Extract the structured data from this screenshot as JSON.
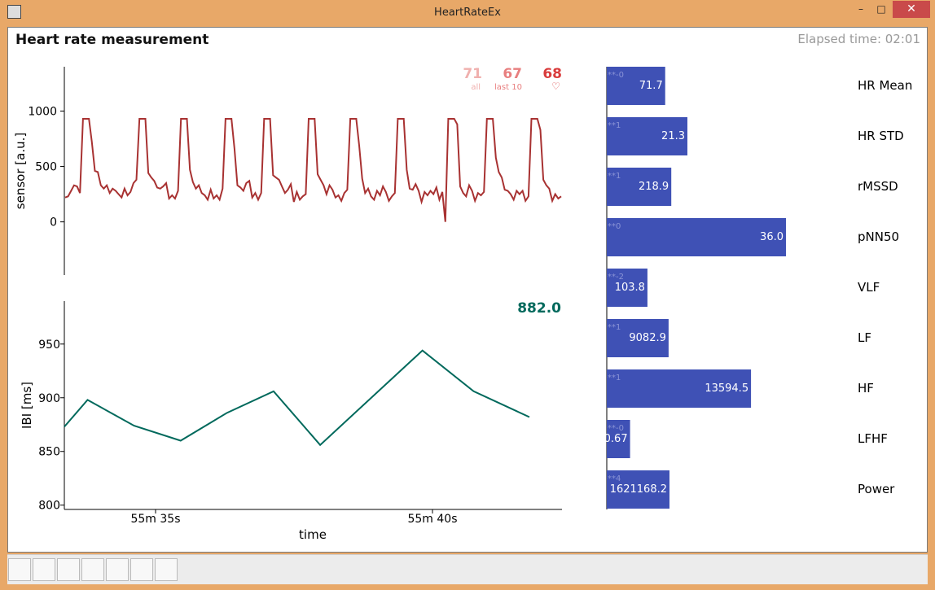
{
  "window": {
    "title": "HeartRateEx",
    "min": "–",
    "max": "□",
    "close": "✕"
  },
  "figure": {
    "title": "Heart rate measurement",
    "elapsed": "Elapsed time: 02:01"
  },
  "hr_readouts": [
    {
      "value": "71",
      "label": "all",
      "color": "#f0b0ae"
    },
    {
      "value": "67",
      "label": "last 10",
      "color": "#e87f7f"
    },
    {
      "value": "68",
      "label": "♡",
      "color": "#d93c3c"
    }
  ],
  "ibi_readout": {
    "value": "882.0",
    "color": "#00695c"
  },
  "chart_data": [
    {
      "type": "line",
      "ylabel": "sensor [a.u.]",
      "yticks": [
        "1000",
        "500",
        "0"
      ],
      "ytick_values": [
        1000,
        500,
        0
      ],
      "color": "#a83232",
      "y": [
        220,
        230,
        280,
        330,
        320,
        260,
        930,
        930,
        930,
        720,
        460,
        450,
        330,
        300,
        330,
        260,
        300,
        280,
        250,
        220,
        300,
        240,
        270,
        350,
        380,
        930,
        930,
        930,
        440,
        400,
        370,
        310,
        300,
        320,
        350,
        210,
        240,
        210,
        280,
        930,
        930,
        930,
        470,
        360,
        300,
        330,
        260,
        240,
        200,
        290,
        210,
        240,
        200,
        300,
        930,
        930,
        930,
        660,
        330,
        310,
        280,
        350,
        370,
        220,
        260,
        200,
        260,
        930,
        930,
        930,
        420,
        400,
        380,
        320,
        260,
        290,
        340,
        180,
        270,
        200,
        230,
        250,
        930,
        930,
        930,
        430,
        380,
        330,
        250,
        330,
        290,
        220,
        240,
        190,
        260,
        290,
        930,
        930,
        930,
        690,
        390,
        260,
        300,
        230,
        200,
        280,
        240,
        320,
        270,
        190,
        230,
        260,
        930,
        930,
        930,
        470,
        300,
        290,
        340,
        280,
        180,
        270,
        240,
        280,
        250,
        310,
        200,
        270,
        0,
        930,
        930,
        930,
        880,
        320,
        260,
        230,
        330,
        280,
        190,
        260,
        240,
        270,
        930,
        930,
        930,
        580,
        450,
        400,
        290,
        280,
        250,
        200,
        280,
        250,
        280,
        190,
        230,
        930,
        930,
        930,
        830,
        380,
        330,
        300,
        190,
        250,
        210,
        230
      ],
      "ylim": [
        -480,
        1400
      ]
    },
    {
      "type": "line",
      "xlabel": "time",
      "ylabel": "IBI [ms]",
      "xticks": [
        "55m 35s",
        "55m 40s"
      ],
      "yticks": [
        "950",
        "900",
        "850",
        "800"
      ],
      "ytick_values": [
        950,
        900,
        850,
        800
      ],
      "color": "#00695c",
      "x": [
        0,
        0.5,
        1.5,
        2.5,
        3.5,
        4.5,
        5.5,
        7.7,
        8.8,
        10.0
      ],
      "y": [
        873,
        898,
        874,
        860,
        886,
        906,
        856,
        944,
        906,
        882
      ],
      "ylim": [
        796,
        990
      ]
    },
    {
      "type": "bar",
      "orientation": "horizontal",
      "color": "#3f51b5",
      "categories": [
        "HR Mean",
        "HR STD",
        "rMSSD",
        "pNN50",
        "VLF",
        "LF",
        "HF",
        "LFHF",
        "Power"
      ],
      "bars": [
        {
          "value_label": "71.7",
          "exp_label": "**-0",
          "fill": 0.326
        },
        {
          "value_label": "21.3",
          "exp_label": "**1",
          "fill": 0.45
        },
        {
          "value_label": "218.9",
          "exp_label": "**1",
          "fill": 0.36
        },
        {
          "value_label": "36.0",
          "exp_label": "**0",
          "fill": 1.0
        },
        {
          "value_label": "103.8",
          "exp_label": "**-2",
          "fill": 0.227
        },
        {
          "value_label": "9082.9",
          "exp_label": "**1",
          "fill": 0.345
        },
        {
          "value_label": "13594.5",
          "exp_label": "**1",
          "fill": 0.805
        },
        {
          "value_label": "0.67",
          "exp_label": "**-0",
          "fill": 0.13
        },
        {
          "value_label": "1621168.2",
          "exp_label": "**4",
          "fill": 0.35
        }
      ]
    }
  ],
  "toolbar": {
    "buttons": [
      "home-icon",
      "back-arrow-icon",
      "forward-arrow-icon",
      "pan-move-icon",
      "zoom-rect-icon",
      "configure-subplots-icon",
      "save-floppy-icon"
    ]
  }
}
